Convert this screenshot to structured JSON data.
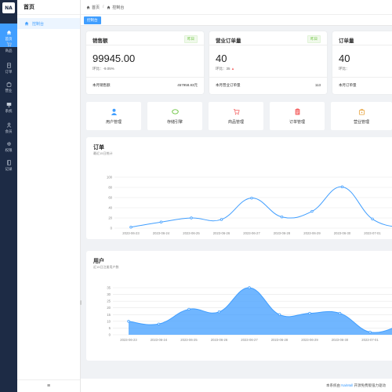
{
  "rail": {
    "logo": "NA",
    "items": [
      {
        "label": "首页",
        "icon": "home-icon",
        "active": true
      },
      {
        "label": "商品",
        "icon": "cart-icon"
      },
      {
        "label": "订单",
        "icon": "document-icon"
      },
      {
        "label": "营业",
        "icon": "bag-icon"
      },
      {
        "label": "系统",
        "icon": "monitor-icon"
      },
      {
        "label": "会员",
        "icon": "user-icon"
      },
      {
        "label": "权限",
        "icon": "gear-icon"
      },
      {
        "label": "记录",
        "icon": "notebook-icon"
      }
    ]
  },
  "submenu": {
    "title": "首页",
    "item": "控制台",
    "collapse_glyph": "≡"
  },
  "topbar": {
    "crumbs": [
      "首页",
      "控制台"
    ]
  },
  "tags": {
    "active": "控制台"
  },
  "stats": [
    {
      "title": "销售额",
      "badge": "昨日",
      "value": "99945.00",
      "sub_label": "环比：",
      "sub_value": "-9.05%",
      "foot_label": "本月销售额",
      "foot_value": "457958.83元"
    },
    {
      "title": "营业订单量",
      "badge": "昨日",
      "value": "40",
      "sub_label": "环比：",
      "sub_value": "35",
      "foot_label": "本月营业订单量",
      "foot_value": "113"
    },
    {
      "title": "订单量",
      "badge": "",
      "value": "40",
      "sub_label": "环比：",
      "sub_value": "",
      "foot_label": "本月订单量",
      "foot_value": ""
    }
  ],
  "shortcuts": [
    {
      "label": "用户管理",
      "icon": "user-icon",
      "color": "#409eff"
    },
    {
      "label": "存储引擎",
      "icon": "leaf-icon",
      "color": "#67c23a"
    },
    {
      "label": "商品管理",
      "icon": "cart-icon",
      "color": "#f56c6c"
    },
    {
      "label": "订单管理",
      "icon": "clipboard-icon",
      "color": "#f56c6c"
    },
    {
      "label": "营业管理",
      "icon": "bag-icon",
      "color": "#e6a23c"
    }
  ],
  "chart_data": [
    {
      "type": "line",
      "title": "订单",
      "subtitle": "最近15日统计",
      "categories": [
        "2023-06-23",
        "2023-06-24",
        "2023-06-25",
        "2023-06-26",
        "2023-06-27",
        "2023-06-28",
        "2023-06-29",
        "2023-06-30",
        "2023-07-01",
        "2023-07-02"
      ],
      "values": [
        2,
        12,
        20,
        17,
        59,
        22,
        33,
        81,
        18,
        0
      ],
      "ylim": [
        0,
        100
      ],
      "yticks": [
        0,
        20,
        40,
        60,
        80,
        100
      ],
      "color": "#409eff"
    },
    {
      "type": "area",
      "title": "用户",
      "subtitle": "近15日注册用户数",
      "categories": [
        "2023-06-23",
        "2023-06-24",
        "2023-06-25",
        "2023-06-26",
        "2023-06-27",
        "2023-06-28",
        "2023-06-29",
        "2023-06-30",
        "2023-07-01",
        "2023-07-02"
      ],
      "values": [
        10,
        8,
        19,
        17,
        35,
        15,
        16,
        16,
        2,
        7
      ],
      "ylim": [
        0,
        35
      ],
      "yticks": [
        0,
        5,
        10,
        15,
        20,
        25,
        30,
        35
      ],
      "color": "#409eff"
    }
  ],
  "footer": {
    "prefix": "本系统由",
    "link": "NaiMall",
    "suffix": "开源免费版强力驱动"
  }
}
